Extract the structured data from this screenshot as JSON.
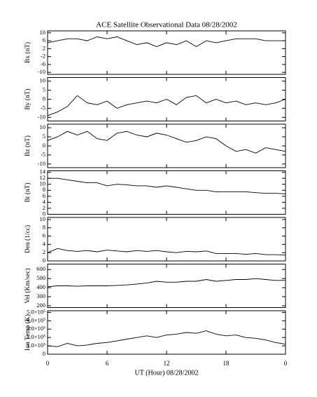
{
  "chart_data": {
    "type": "line",
    "title": "ACE Satellite Observational Data   08/28/2002",
    "xlabel": "UT (Hour)   08/28/2002",
    "x": [
      0,
      1,
      2,
      3,
      4,
      5,
      6,
      7,
      8,
      9,
      10,
      11,
      12,
      13,
      14,
      15,
      16,
      17,
      18,
      19,
      20,
      21,
      22,
      23,
      24
    ],
    "xlim": [
      0,
      24
    ],
    "xticks": [
      0,
      6,
      12,
      18,
      {
        "value": 24,
        "label": "0"
      }
    ],
    "panels": [
      {
        "ylabel": "Bx (nT)",
        "ylim": [
          -11,
          11
        ],
        "yticks": [
          -10,
          -6,
          -2,
          2,
          6,
          10
        ],
        "values": [
          5,
          6,
          7,
          7,
          6,
          8,
          7,
          8,
          6,
          4,
          5,
          3,
          5,
          4,
          6,
          3,
          6,
          5,
          6,
          7,
          7,
          7,
          6,
          6,
          6
        ]
      },
      {
        "ylabel": "By (nT)",
        "ylim": [
          -12,
          12
        ],
        "yticks": [
          -10,
          -5,
          0,
          5,
          10
        ],
        "values": [
          -9,
          -7,
          -4,
          2,
          -2,
          -3,
          -1,
          -5,
          -3,
          -2,
          -1,
          -2,
          0,
          -3,
          1,
          2,
          -2,
          0,
          -2,
          -1,
          -3,
          -2,
          -3,
          -2,
          0
        ]
      },
      {
        "ylabel": "Bz (nT)",
        "ylim": [
          -12,
          12
        ],
        "yticks": [
          -10,
          -5,
          0,
          5,
          10
        ],
        "values": [
          3,
          5,
          8,
          6,
          8,
          4,
          3,
          7,
          8,
          6,
          5,
          7,
          6,
          4,
          2,
          3,
          5,
          4,
          0,
          -3,
          -2,
          -4,
          -1,
          -2,
          -3
        ]
      },
      {
        "ylabel": "Bt (nT)",
        "ylim": [
          0,
          14.5
        ],
        "yticks": [
          0,
          2,
          4,
          6,
          8,
          10,
          12,
          14
        ],
        "values": [
          12,
          12,
          11.5,
          11,
          10.5,
          10.5,
          9.5,
          10,
          9.8,
          9.5,
          9.5,
          9,
          9.5,
          9,
          8.5,
          8,
          8,
          7.5,
          7.5,
          7.5,
          7.5,
          7.2,
          7,
          7,
          6.8
        ]
      },
      {
        "ylabel": "Den (1/cc)",
        "ylim": [
          0,
          10.5
        ],
        "yticks": [
          0,
          2,
          4,
          6,
          8,
          10
        ],
        "values": [
          2,
          3,
          2.5,
          2.3,
          2.5,
          2.2,
          2.6,
          2.4,
          2.2,
          2.5,
          2.3,
          2.5,
          2.2,
          2,
          2.3,
          2.2,
          2.4,
          1.8,
          1.8,
          1.8,
          1.6,
          1.8,
          1.5,
          1.5,
          1.4
        ]
      },
      {
        "ylabel": "Vel (Km/sec)",
        "ylim": [
          180,
          660
        ],
        "yticks": [
          200,
          300,
          400,
          500,
          600
        ],
        "values": [
          410,
          420,
          420,
          415,
          420,
          420,
          420,
          425,
          430,
          440,
          450,
          470,
          460,
          460,
          470,
          470,
          490,
          470,
          480,
          490,
          490,
          500,
          490,
          480,
          480
        ]
      },
      {
        "ylabel": "Ion Temp (K)",
        "ylim": [
          0,
          520000
        ],
        "yticks": [
          0,
          {
            "value": 100000,
            "label": "1.0×10⁵"
          },
          {
            "value": 200000,
            "label": "2.0×10⁵"
          },
          {
            "value": 300000,
            "label": "3.0×10⁵"
          },
          {
            "value": 400000,
            "label": "4.0×10⁵"
          },
          {
            "value": 500000,
            "label": "5.0×10⁵"
          }
        ],
        "values": [
          100000,
          90000,
          130000,
          100000,
          110000,
          130000,
          140000,
          160000,
          180000,
          200000,
          220000,
          200000,
          230000,
          240000,
          260000,
          250000,
          280000,
          240000,
          220000,
          230000,
          200000,
          190000,
          170000,
          140000,
          120000
        ]
      }
    ]
  }
}
